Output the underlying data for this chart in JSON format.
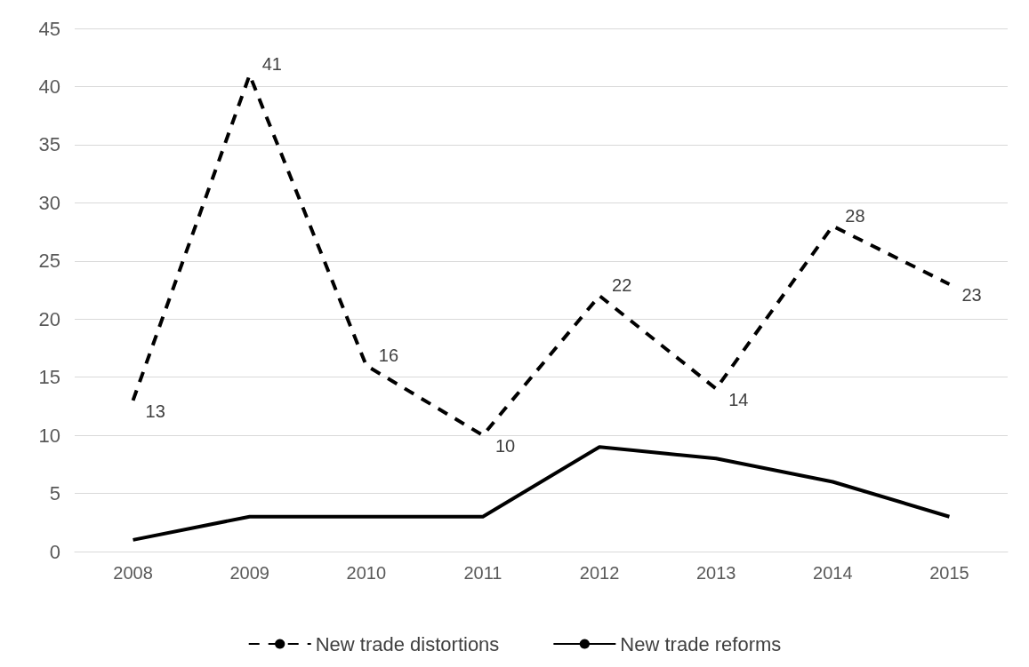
{
  "chart_data": {
    "type": "line",
    "categories": [
      "2008",
      "2009",
      "2010",
      "2011",
      "2012",
      "2013",
      "2014",
      "2015"
    ],
    "series": [
      {
        "name": "New trade distortions",
        "color": "#000000",
        "line_style": "dashed",
        "values": [
          13,
          41,
          16,
          10,
          22,
          14,
          28,
          23
        ],
        "value_labels": [
          "13",
          "41",
          "16",
          "10",
          "22",
          "14",
          "28",
          "23"
        ]
      },
      {
        "name": "New trade reforms",
        "color": "#000000",
        "line_style": "solid",
        "values": [
          1,
          3,
          3,
          3,
          9,
          8,
          6,
          3
        ]
      }
    ],
    "ylim": [
      0,
      45
    ],
    "yticks": [
      0,
      5,
      10,
      15,
      20,
      25,
      30,
      35,
      40,
      45
    ],
    "grid": "y",
    "legend": "bottom",
    "marker": "none"
  }
}
